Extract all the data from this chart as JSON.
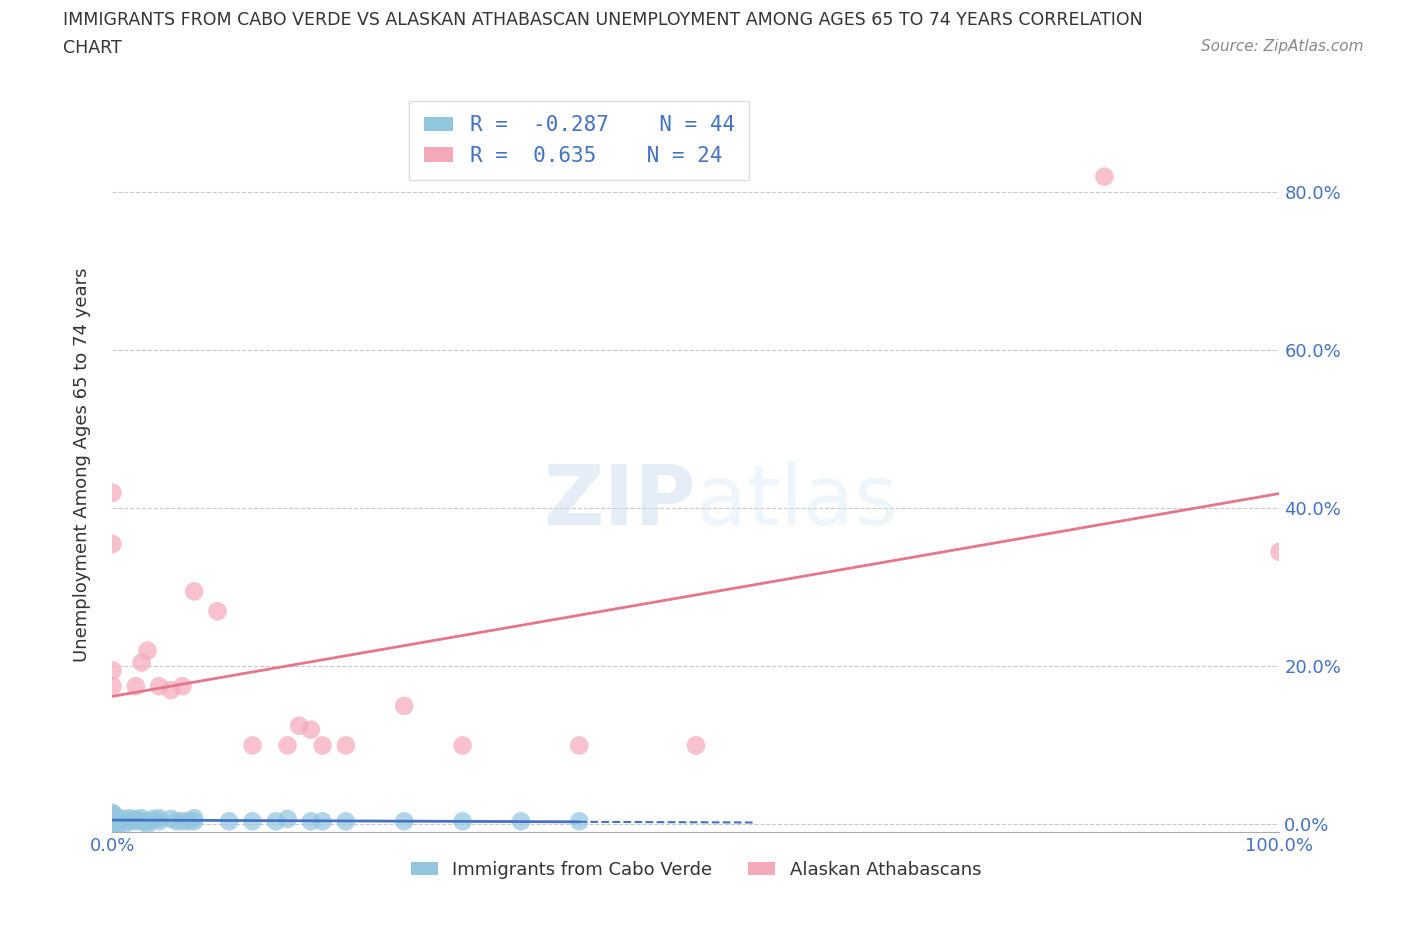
{
  "title_line1": "IMMIGRANTS FROM CABO VERDE VS ALASKAN ATHABASCAN UNEMPLOYMENT AMONG AGES 65 TO 74 YEARS CORRELATION",
  "title_line2": "CHART",
  "source": "Source: ZipAtlas.com",
  "ylabel": "Unemployment Among Ages 65 to 74 years",
  "ytick_labels": [
    "0.0%",
    "20.0%",
    "40.0%",
    "60.0%",
    "80.0%"
  ],
  "ytick_values": [
    0.0,
    0.2,
    0.4,
    0.6,
    0.8
  ],
  "xlim": [
    0.0,
    1.0
  ],
  "ylim": [
    -0.01,
    0.92
  ],
  "legend_label1": "Immigrants from Cabo Verde",
  "legend_label2": "Alaskan Athabascans",
  "R1": -0.287,
  "N1": 44,
  "R2": 0.635,
  "N2": 24,
  "color_blue": "#92C5DE",
  "color_pink": "#F4A9B8",
  "color_blue_line": "#4472C4",
  "color_pink_line": "#E8768A",
  "blue_x": [
    0.0,
    0.0,
    0.0,
    0.0,
    0.0,
    0.0,
    0.0,
    0.0,
    0.0,
    0.0,
    0.0,
    0.005,
    0.005,
    0.005,
    0.01,
    0.01,
    0.015,
    0.015,
    0.02,
    0.02,
    0.025,
    0.025,
    0.03,
    0.03,
    0.035,
    0.04,
    0.04,
    0.05,
    0.055,
    0.06,
    0.065,
    0.07,
    0.07,
    0.1,
    0.12,
    0.14,
    0.15,
    0.17,
    0.18,
    0.2,
    0.25,
    0.3,
    0.35,
    0.4
  ],
  "blue_y": [
    0.0,
    0.0,
    0.0,
    0.005,
    0.005,
    0.007,
    0.007,
    0.01,
    0.01,
    0.013,
    0.015,
    0.0,
    0.005,
    0.008,
    0.0,
    0.007,
    0.004,
    0.008,
    0.007,
    0.004,
    0.004,
    0.008,
    0.004,
    0.0,
    0.007,
    0.004,
    0.008,
    0.007,
    0.004,
    0.004,
    0.004,
    0.004,
    0.008,
    0.004,
    0.004,
    0.004,
    0.007,
    0.004,
    0.004,
    0.004,
    0.004,
    0.004,
    0.004,
    0.004
  ],
  "pink_x": [
    0.0,
    0.0,
    0.0,
    0.0,
    0.02,
    0.025,
    0.03,
    0.04,
    0.05,
    0.06,
    0.07,
    0.09,
    0.12,
    0.15,
    0.16,
    0.17,
    0.18,
    0.2,
    0.25,
    0.3,
    0.4,
    0.5,
    0.85,
    1.0
  ],
  "pink_y": [
    0.42,
    0.355,
    0.195,
    0.175,
    0.175,
    0.205,
    0.22,
    0.175,
    0.17,
    0.175,
    0.295,
    0.27,
    0.1,
    0.1,
    0.125,
    0.12,
    0.1,
    0.1,
    0.15,
    0.1,
    0.1,
    0.1,
    0.82,
    0.345
  ]
}
